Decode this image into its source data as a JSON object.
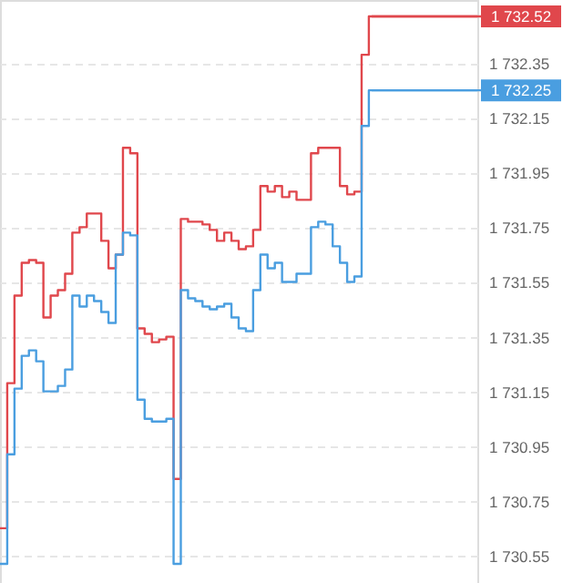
{
  "chart_data": {
    "type": "step",
    "categories": [
      null,
      null,
      null,
      null,
      null,
      null,
      null,
      null,
      null,
      null,
      null,
      null,
      null,
      null,
      null,
      null,
      null,
      null,
      null,
      null,
      null,
      null,
      null,
      null,
      null,
      null,
      null,
      null,
      null,
      null,
      null,
      null,
      null,
      null,
      null,
      null,
      null,
      null,
      null,
      null,
      null,
      null,
      null,
      null,
      null,
      null,
      null,
      null,
      null,
      null,
      null,
      null,
      null,
      null,
      null,
      null,
      null,
      null,
      null,
      null,
      null,
      null,
      null,
      null,
      null,
      null,
      null
    ],
    "series": [
      {
        "color": "#e0474c",
        "values": [
          1730.65,
          1731.18,
          1731.5,
          1731.62,
          1731.63,
          1731.62,
          1731.42,
          1731.5,
          1731.52,
          1731.58,
          1731.73,
          1731.75,
          1731.8,
          1731.8,
          1731.7,
          1731.6,
          1731.65,
          1732.04,
          1732.02,
          1731.38,
          1731.36,
          1731.33,
          1731.34,
          1731.35,
          1730.83,
          1731.78,
          1731.77,
          1731.77,
          1731.76,
          1731.74,
          1731.7,
          1731.73,
          1731.7,
          1731.67,
          1731.68,
          1731.74,
          1731.9,
          1731.88,
          1731.9,
          1731.86,
          1731.88,
          1731.85,
          1731.85,
          1732.02,
          1732.04,
          1732.04,
          1732.04,
          1731.9,
          1731.87,
          1731.88,
          1732.38,
          1732.52,
          1732.52,
          1732.52,
          1732.52,
          1732.52,
          1732.52,
          1732.52,
          1732.52,
          1732.52,
          1732.52,
          1732.52,
          1732.52,
          1732.52,
          1732.52,
          1732.52,
          1732.52
        ]
      },
      {
        "color": "#4a9ee0",
        "values": [
          1730.52,
          1730.92,
          1731.16,
          1731.28,
          1731.3,
          1731.26,
          1731.15,
          1731.15,
          1731.17,
          1731.23,
          1731.5,
          1731.46,
          1731.5,
          1731.48,
          1731.44,
          1731.4,
          1731.65,
          1731.73,
          1731.72,
          1731.12,
          1731.05,
          1731.04,
          1731.04,
          1731.05,
          1730.52,
          1731.52,
          1731.49,
          1731.48,
          1731.46,
          1731.45,
          1731.46,
          1731.47,
          1731.42,
          1731.38,
          1731.37,
          1731.52,
          1731.65,
          1731.6,
          1731.62,
          1731.55,
          1731.55,
          1731.58,
          1731.58,
          1731.75,
          1731.77,
          1731.76,
          1731.68,
          1731.62,
          1731.55,
          1731.57,
          1732.12,
          1732.25,
          1732.25,
          1732.25,
          1732.25,
          1732.25,
          1732.25,
          1732.25,
          1732.25,
          1732.25,
          1732.25,
          1732.25,
          1732.25,
          1732.25,
          1732.25,
          1732.25,
          1732.25
        ]
      }
    ],
    "ref_lines": [
      {
        "axis": "y",
        "value": 1732.52,
        "label": "1 732.52",
        "color": "#e0474c"
      },
      {
        "axis": "y",
        "value": 1732.25,
        "label": "1 732.25",
        "color": "#4a9ee0"
      }
    ],
    "ylim": [
      1730.45,
      1732.58
    ],
    "yticks": [
      {
        "value": 1730.55,
        "label": "1 730.55"
      },
      {
        "value": 1730.75,
        "label": "1 730.75"
      },
      {
        "value": 1730.95,
        "label": "1 730.95"
      },
      {
        "value": 1731.15,
        "label": "1 731.15"
      },
      {
        "value": 1731.35,
        "label": "1 731.35"
      },
      {
        "value": 1731.55,
        "label": "1 731.55"
      },
      {
        "value": 1731.75,
        "label": "1 731.75"
      },
      {
        "value": 1731.95,
        "label": "1 731.95"
      },
      {
        "value": 1732.15,
        "label": "1 732.15"
      },
      {
        "value": 1732.35,
        "label": "1 732.35"
      }
    ],
    "grid": "y",
    "line_style": "solid",
    "marker": "none"
  }
}
